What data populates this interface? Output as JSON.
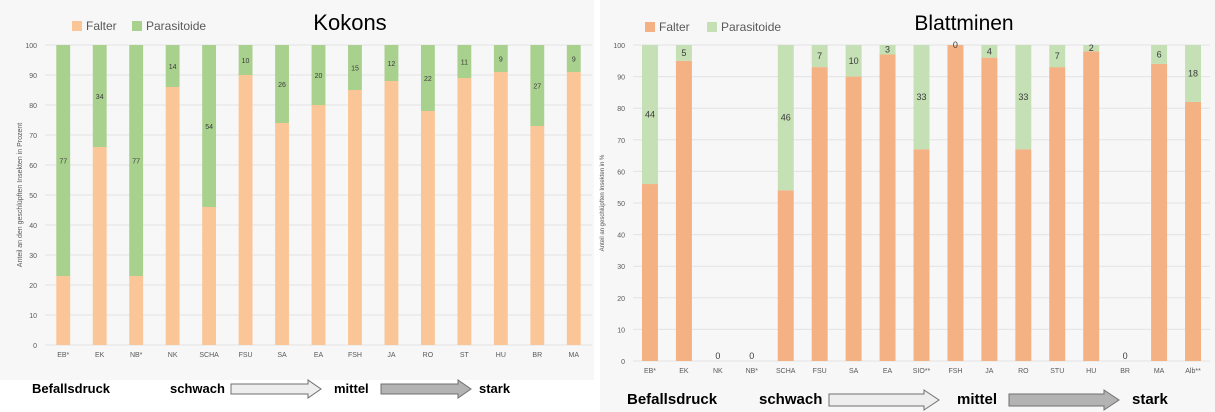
{
  "colors": {
    "left_falter": "#fbc697",
    "left_parasitoide": "#a9d18e",
    "right_falter": "#f4b183",
    "right_parasitoide": "#c5e0b4",
    "grid": "#e3e3e3"
  },
  "chart_data": [
    {
      "type": "bar",
      "stacked": true,
      "title": "Kokons",
      "ylabel": "Anteil an den geschlüpften Insekten in Prozent",
      "xlabel": "",
      "ylim": [
        0,
        100
      ],
      "yticks": [
        0,
        10,
        20,
        30,
        40,
        50,
        60,
        70,
        80,
        90,
        100
      ],
      "grid": true,
      "legend_position": "top-left",
      "categories": [
        "EB*",
        "EK",
        "NB*",
        "NK",
        "SCHA",
        "FSU",
        "SA",
        "EA",
        "FSH",
        "JA",
        "RO",
        "ST",
        "HU",
        "BR",
        "MA"
      ],
      "series": [
        {
          "name": "Falter",
          "values": [
            23,
            66,
            23,
            86,
            46,
            90,
            74,
            80,
            85,
            88,
            78,
            89,
            91,
            73,
            91
          ]
        },
        {
          "name": "Parasitoide",
          "values": [
            77,
            34,
            77,
            14,
            54,
            10,
            26,
            20,
            15,
            12,
            22,
            11,
            9,
            27,
            9
          ]
        }
      ],
      "data_labels": [
        "77",
        "34",
        "77",
        "14",
        "54",
        "10",
        "26",
        "20",
        "15",
        "12",
        "22",
        "11",
        "9",
        "27",
        "9"
      ]
    },
    {
      "type": "bar",
      "stacked": true,
      "title": "Blattminen",
      "ylabel": "Anteil an geschlüpften Insekten in %",
      "xlabel": "",
      "ylim": [
        0,
        100
      ],
      "yticks": [
        0,
        10,
        20,
        30,
        40,
        50,
        60,
        70,
        80,
        90,
        100
      ],
      "grid": true,
      "legend_position": "top-left",
      "categories": [
        "EB*",
        "EK",
        "NK",
        "NB*",
        "SCHA",
        "FSU",
        "SA",
        "EA",
        "SIO**",
        "FSH",
        "JA",
        "RO",
        "STU",
        "HU",
        "BR",
        "MA",
        "Alb**"
      ],
      "series": [
        {
          "name": "Falter",
          "values": [
            56,
            95,
            0,
            0,
            54,
            93,
            90,
            97,
            67,
            100,
            96,
            67,
            93,
            98,
            0,
            94,
            82
          ]
        },
        {
          "name": "Parasitoide",
          "values": [
            44,
            5,
            0,
            0,
            46,
            7,
            10,
            3,
            33,
            0,
            4,
            33,
            7,
            2,
            0,
            6,
            18
          ]
        }
      ],
      "data_labels": [
        "44",
        "5",
        "0",
        "0",
        "46",
        "7",
        "10",
        "3",
        "33",
        "0",
        "4",
        "33",
        "7",
        "2",
        "0",
        "6",
        "18"
      ]
    }
  ],
  "pressure_scales": [
    {
      "befallsdruck": "Befallsdruck",
      "schwach": "schwach",
      "mittel": "mittel",
      "stark": "stark"
    },
    {
      "befallsdruck": "Befallsdruck",
      "schwach": "schwach",
      "mittel": "mittel",
      "stark": "stark"
    }
  ]
}
